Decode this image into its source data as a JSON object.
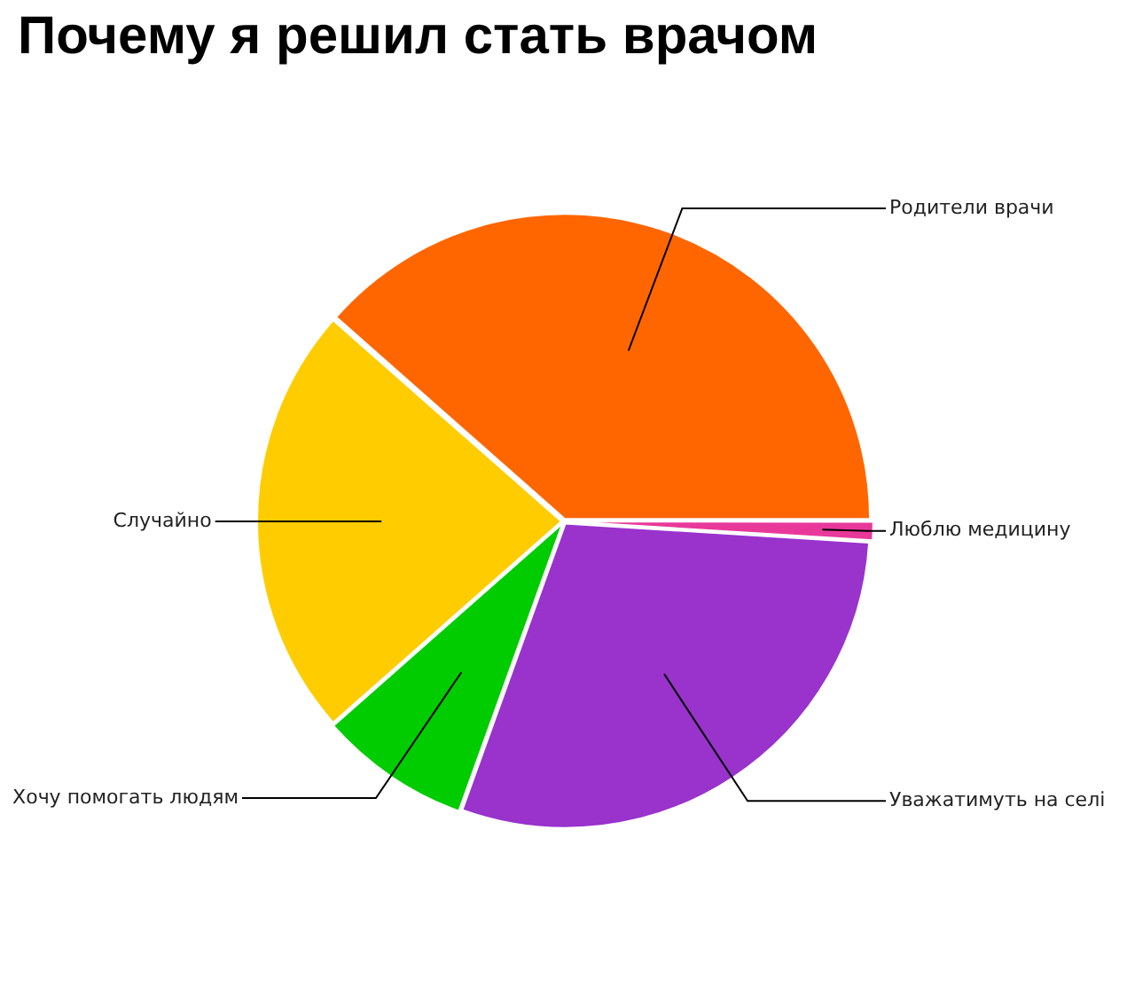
{
  "chart_data": {
    "type": "pie",
    "title": "Почему я решил стать врачом",
    "categories": [
      "Люблю медицину",
      "Уважатимуть на селі",
      "Хочу помогать людям",
      "Случайно",
      "Родители врачи"
    ],
    "values": [
      1,
      29.5,
      8,
      23,
      38.5
    ],
    "colors": [
      "#e8399a",
      "#9933cc",
      "#00cc00",
      "#ffcc00",
      "#ff6600"
    ]
  }
}
